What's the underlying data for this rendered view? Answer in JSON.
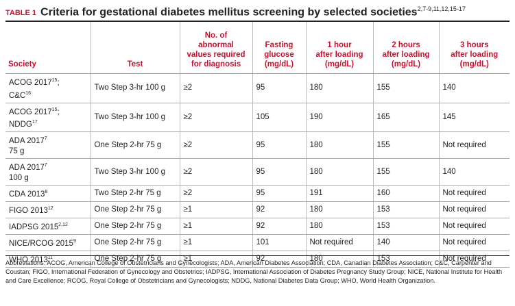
{
  "title": {
    "label": "TABLE 1",
    "text": "Criteria for gestational diabetes mellitus screening by selected societies",
    "sup": "2,7-9,11,12,15-17"
  },
  "table": {
    "columns": [
      [
        "Society"
      ],
      [
        "Test"
      ],
      [
        "No. of",
        "abnormal",
        "values required",
        "for diagnosis"
      ],
      [
        "Fasting",
        "glucose",
        "(mg/dL)"
      ],
      [
        "1 hour",
        "after loading",
        "(mg/dL)"
      ],
      [
        "2 hours",
        "after loading",
        "(mg/dL)"
      ],
      [
        "3 hours",
        "after loading",
        "(mg/dL)"
      ]
    ],
    "rows": [
      [
        [
          [
            "ACOG 2017",
            {
              "sup": "15"
            },
            ";"
          ],
          [
            "C&C",
            {
              "sup": "16"
            }
          ]
        ],
        "Two Step 3-hr 100 g",
        "≥2",
        "95",
        "180",
        "155",
        "140"
      ],
      [
        [
          [
            "ACOG 2017",
            {
              "sup": "15"
            },
            ";"
          ],
          [
            "NDDG",
            {
              "sup": "17"
            }
          ]
        ],
        "Two Step 3-hr 100 g",
        "≥2",
        "105",
        "190",
        "165",
        "145"
      ],
      [
        [
          [
            "ADA 2017",
            {
              "sup": "7"
            }
          ],
          [
            "75 g"
          ]
        ],
        "One Step 2-hr 75 g",
        "≥2",
        "95",
        "180",
        "155",
        "Not required"
      ],
      [
        [
          [
            "ADA 2017",
            {
              "sup": "7"
            }
          ],
          [
            "100 g"
          ]
        ],
        "Two Step 3-hr 100 g",
        "≥2",
        "95",
        "180",
        "155",
        "140"
      ],
      [
        [
          [
            "CDA 2013",
            {
              "sup": "8"
            }
          ]
        ],
        "Two Step 2-hr 75 g",
        "≥2",
        "95",
        "191",
        "160",
        "Not required"
      ],
      [
        [
          [
            "FIGO 2013",
            {
              "sup": "12"
            }
          ]
        ],
        "One Step 2-hr 75 g",
        "≥1",
        "92",
        "180",
        "153",
        "Not required"
      ],
      [
        [
          [
            "IADPSG 2015",
            {
              "sup": "2,12"
            }
          ]
        ],
        "One Step 2-hr 75 g",
        "≥1",
        "92",
        "180",
        "153",
        "Not required"
      ],
      [
        [
          [
            "NICE/RCOG 2015",
            {
              "sup": "9"
            }
          ]
        ],
        "One Step 2-hr 75 g",
        "≥1",
        "101",
        "Not required",
        "140",
        "Not required"
      ],
      [
        [
          [
            "WHO 2013",
            {
              "sup": "11"
            }
          ]
        ],
        "One Step 2-hr 75 g",
        "≥1",
        "92",
        "180",
        "153",
        "Not required"
      ]
    ]
  },
  "footnote": "Abbreviations: ACOG, American College of Obstetricians and Gynecologists; ADA, American Diabetes Association; CDA, Canadian Diabetes Association; C&C, Carpenter and Coustan; FIGO, International Federation of Gynecology and Obstetrics; IADPSG, International Association of Diabetes Pregnancy Study Group; NICE, National Institute for Health and Care Excellence; RCOG, Royal College of Obstetricians and Gynecologists; NDDG, National Diabetes Data Group; WHO, World Health Organization."
}
